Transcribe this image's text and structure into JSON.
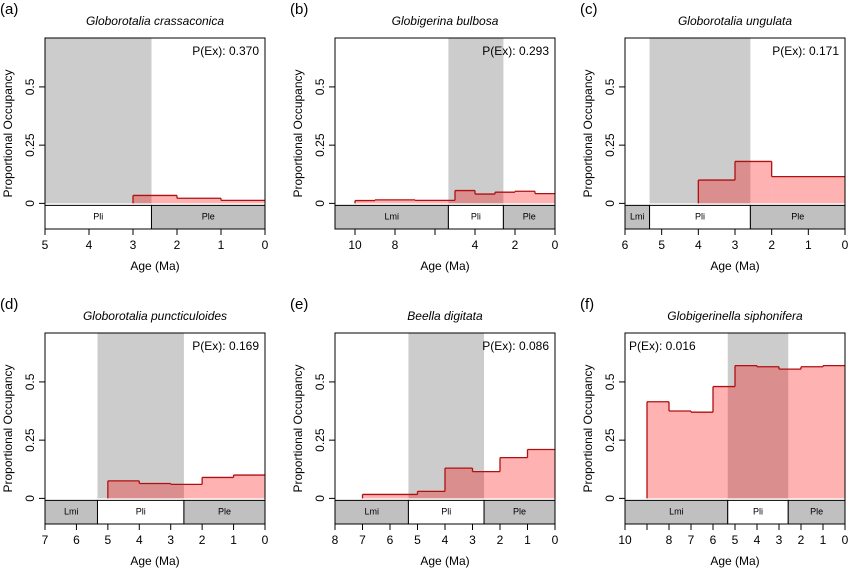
{
  "chart_data": [
    {
      "type": "histogram",
      "letter": "(a)",
      "title": "Globorotalia crassaconica",
      "annotation": "P(Ex): 0.370",
      "annotation_corner": "top-right",
      "xlabel": "Age (Ma)",
      "ylabel": "Proportional Occupancy",
      "xlim": [
        5,
        0
      ],
      "xticks": [
        5,
        4,
        3,
        2,
        1,
        0
      ],
      "ylim": [
        -0.11,
        0.71
      ],
      "yticks": [
        0,
        0.25,
        0.5
      ],
      "color": "#ff0000",
      "edge_color": "#b01010",
      "shade": [
        5.33,
        2.58
      ],
      "shade_color": "#cccccc",
      "epochs": [
        {
          "label": "Pli",
          "from": 5.33,
          "to": 2.58,
          "color": "#ffffff"
        },
        {
          "label": "Ple",
          "from": 2.58,
          "to": 0,
          "color": "#c0c0c0"
        }
      ],
      "bins": [
        3,
        2,
        1,
        0
      ],
      "values": [
        0.034,
        0.022,
        0.013
      ]
    },
    {
      "type": "histogram",
      "letter": "(b)",
      "title": "Globigerina bulbosa",
      "annotation": "P(Ex): 0.293",
      "annotation_corner": "top-right",
      "xlabel": "Age (Ma)",
      "ylabel": "Proportional Occupancy",
      "xlim": [
        11,
        0
      ],
      "xticks": [
        10,
        8,
        {
          "value": 6,
          "label": null
        },
        4,
        2,
        0
      ],
      "ylim": [
        -0.11,
        0.71
      ],
      "yticks": [
        0,
        0.25,
        0.5
      ],
      "color": "#ff0000",
      "edge_color": "#b01010",
      "shade": [
        5.33,
        2.58
      ],
      "shade_color": "#cccccc",
      "epochs": [
        {
          "label": "Lmi",
          "from": 11,
          "to": 5.33,
          "color": "#c0c0c0"
        },
        {
          "label": "Pli",
          "from": 5.33,
          "to": 2.58,
          "color": "#ffffff"
        },
        {
          "label": "Ple",
          "from": 2.58,
          "to": 0,
          "color": "#c0c0c0"
        }
      ],
      "bins": [
        10,
        9,
        8,
        7,
        6,
        5,
        4,
        3,
        2,
        1,
        0
      ],
      "values": [
        0.012,
        0.015,
        0.015,
        0.013,
        0.013,
        0.055,
        0.04,
        0.048,
        0.052,
        0.042
      ]
    },
    {
      "type": "histogram",
      "letter": "(c)",
      "title": "Globorotalia ungulata",
      "annotation": "P(Ex): 0.171",
      "annotation_corner": "top-right",
      "xlabel": "Age (Ma)",
      "ylabel": "Proportional Occupancy",
      "xlim": [
        6,
        0
      ],
      "xticks": [
        6,
        5,
        4,
        3,
        2,
        1,
        0
      ],
      "ylim": [
        -0.11,
        0.71
      ],
      "yticks": [
        0,
        0.25,
        0.5
      ],
      "color": "#ff0000",
      "edge_color": "#b01010",
      "shade": [
        5.33,
        2.58
      ],
      "shade_color": "#cccccc",
      "epochs": [
        {
          "label": "Lmi",
          "from": 6,
          "to": 5.33,
          "color": "#c0c0c0"
        },
        {
          "label": "Pli",
          "from": 5.33,
          "to": 2.58,
          "color": "#ffffff"
        },
        {
          "label": "Ple",
          "from": 2.58,
          "to": 0,
          "color": "#c0c0c0"
        }
      ],
      "bins": [
        4,
        3,
        2,
        0
      ],
      "values": [
        0.1,
        0.18,
        0.115
      ]
    },
    {
      "type": "histogram",
      "letter": "(d)",
      "title": "Globorotalia puncticuloides",
      "annotation": "P(Ex): 0.169",
      "annotation_corner": "top-right",
      "xlabel": "Age (Ma)",
      "ylabel": "Proportional Occupancy",
      "xlim": [
        7,
        0
      ],
      "xticks": [
        7,
        6,
        5,
        4,
        3,
        2,
        1,
        0
      ],
      "ylim": [
        -0.11,
        0.71
      ],
      "yticks": [
        0,
        0.25,
        0.5
      ],
      "color": "#ff0000",
      "edge_color": "#b01010",
      "shade": [
        5.33,
        2.58
      ],
      "shade_color": "#cccccc",
      "epochs": [
        {
          "label": "Lmi",
          "from": 7,
          "to": 5.33,
          "color": "#c0c0c0"
        },
        {
          "label": "Pli",
          "from": 5.33,
          "to": 2.58,
          "color": "#ffffff"
        },
        {
          "label": "Ple",
          "from": 2.58,
          "to": 0,
          "color": "#c0c0c0"
        }
      ],
      "bins": [
        5,
        4,
        3,
        2,
        1,
        0
      ],
      "values": [
        0.075,
        0.064,
        0.06,
        0.09,
        0.1
      ]
    },
    {
      "type": "histogram",
      "letter": "(e)",
      "title": "Beella digitata",
      "annotation": "P(Ex): 0.086",
      "annotation_corner": "top-right",
      "xlabel": "Age (Ma)",
      "ylabel": "Proportional Occupancy",
      "xlim": [
        8,
        0
      ],
      "xticks": [
        8,
        7,
        6,
        5,
        4,
        3,
        2,
        1,
        0
      ],
      "ylim": [
        -0.11,
        0.71
      ],
      "yticks": [
        0,
        0.25,
        0.5
      ],
      "color": "#ff0000",
      "edge_color": "#b01010",
      "shade": [
        5.33,
        2.58
      ],
      "shade_color": "#cccccc",
      "epochs": [
        {
          "label": "Lmi",
          "from": 8,
          "to": 5.33,
          "color": "#c0c0c0"
        },
        {
          "label": "Pli",
          "from": 5.33,
          "to": 2.58,
          "color": "#ffffff"
        },
        {
          "label": "Ple",
          "from": 2.58,
          "to": 0,
          "color": "#c0c0c0"
        }
      ],
      "bins": [
        7,
        5,
        4,
        3,
        2,
        1,
        0
      ],
      "values": [
        0.017,
        0.03,
        0.13,
        0.115,
        0.175,
        0.21
      ]
    },
    {
      "type": "histogram",
      "letter": "(f)",
      "title": "Globigerinella siphonifera",
      "annotation": "P(Ex): 0.016",
      "annotation_corner": "top-left",
      "xlabel": "Age (Ma)",
      "ylabel": "Proportional Occupancy",
      "xlim": [
        10,
        0
      ],
      "xticks": [
        10,
        {
          "value": 9,
          "label": null
        },
        8,
        7,
        6,
        5,
        4,
        3,
        2,
        1,
        0
      ],
      "ylim": [
        -0.11,
        0.71
      ],
      "yticks": [
        0,
        0.25,
        0.5
      ],
      "color": "#ff0000",
      "edge_color": "#b01010",
      "shade": [
        5.33,
        2.58
      ],
      "shade_color": "#cccccc",
      "epochs": [
        {
          "label": "Lmi",
          "from": 10,
          "to": 5.33,
          "color": "#c0c0c0"
        },
        {
          "label": "Pli",
          "from": 5.33,
          "to": 2.58,
          "color": "#ffffff"
        },
        {
          "label": "Ple",
          "from": 2.58,
          "to": 0,
          "color": "#c0c0c0"
        }
      ],
      "bins": [
        9,
        8,
        7,
        6,
        5,
        4,
        3,
        2,
        1,
        0
      ],
      "values": [
        0.415,
        0.375,
        0.37,
        0.48,
        0.57,
        0.565,
        0.555,
        0.565,
        0.57
      ]
    }
  ]
}
